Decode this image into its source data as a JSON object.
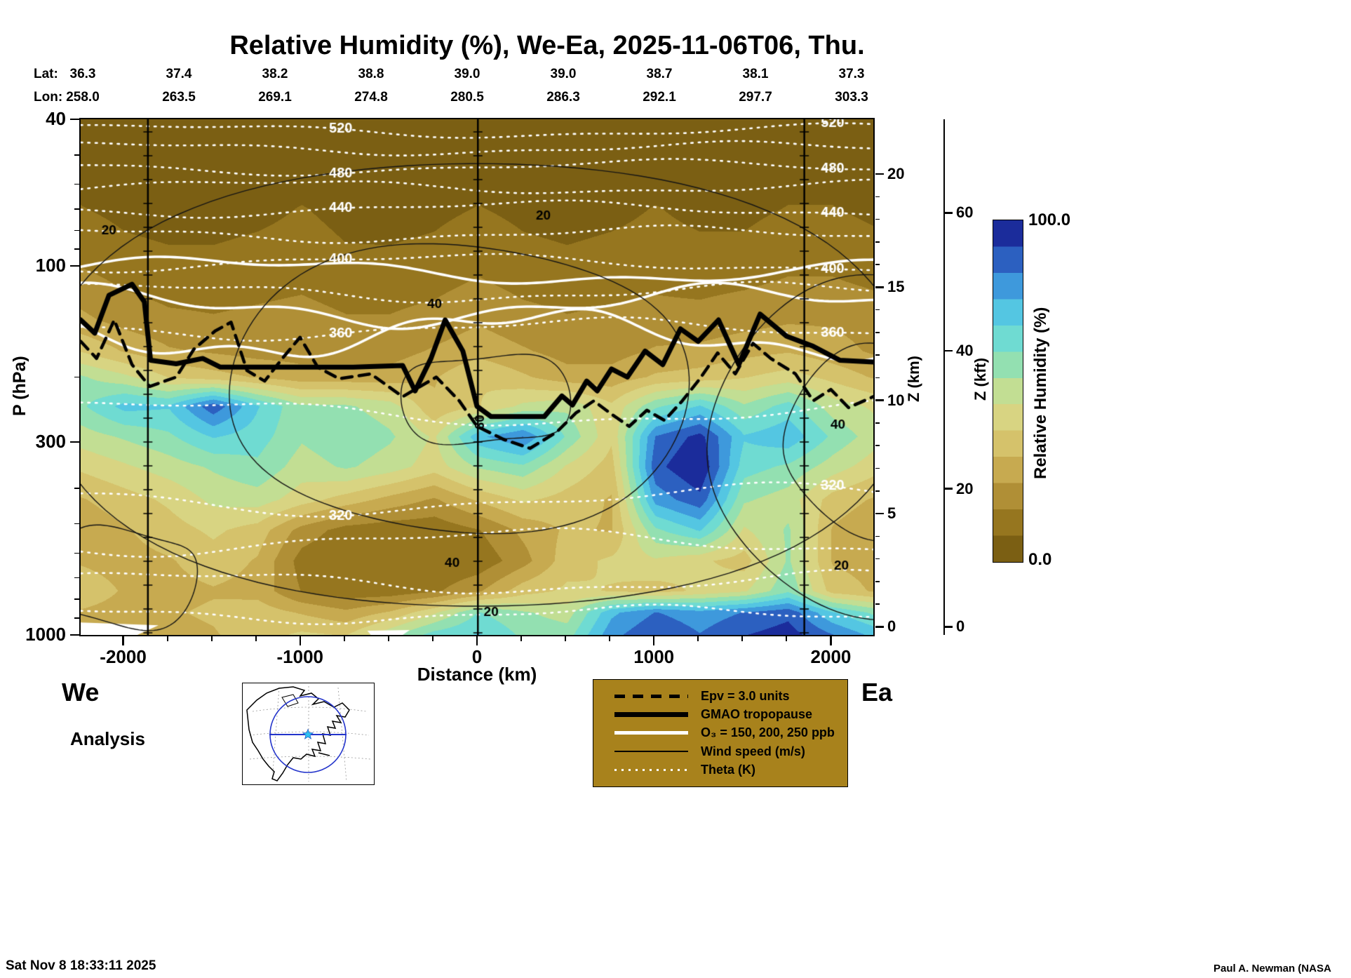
{
  "title": "Relative Humidity (%), We-Ea, 2025-11-06T06, Thu.",
  "header": {
    "lat_label": "Lat:",
    "lon_label": "Lon:",
    "lats": [
      "36.3",
      "37.4",
      "38.2",
      "38.8",
      "39.0",
      "39.0",
      "38.7",
      "38.1",
      "37.3"
    ],
    "lons": [
      "258.0",
      "263.5",
      "269.1",
      "274.8",
      "280.5",
      "286.3",
      "292.1",
      "297.7",
      "303.3"
    ]
  },
  "axes": {
    "pressure": {
      "label": "P (hPa)",
      "ticks": [
        40,
        100,
        300,
        1000
      ],
      "minor_ticks": [
        50,
        60,
        70,
        80,
        90,
        200,
        400,
        500,
        600,
        700,
        800,
        900
      ]
    },
    "distance": {
      "label": "Distance (km)",
      "ticks": [
        -2000,
        -1000,
        0,
        1000,
        2000
      ]
    },
    "z_km": {
      "label": "Z (km)",
      "ticks": [
        0,
        5,
        10,
        15,
        20
      ]
    },
    "z_kft": {
      "label": "Z (kft)",
      "ticks": [
        0,
        20,
        40,
        60
      ]
    }
  },
  "endpoints": {
    "west": "We",
    "east": "Ea"
  },
  "analysis_label": "Analysis",
  "timestamp": "Sat Nov  8 18:33:11 2025",
  "credit": "Paul A. Newman (NASA",
  "colors": {
    "legend_bg": "#a8821c",
    "section_line": "#000000"
  },
  "colorbar": {
    "title": "Relative Humidity (%)",
    "max_label": "100.0",
    "min_label": "0.0",
    "stops": [
      [
        0.0,
        "#6e5410"
      ],
      [
        0.08,
        "#8a6a16"
      ],
      [
        0.16,
        "#a5842b"
      ],
      [
        0.24,
        "#c0a046"
      ],
      [
        0.32,
        "#d2bb62"
      ],
      [
        0.4,
        "#dbd07e"
      ],
      [
        0.48,
        "#cfdd8c"
      ],
      [
        0.55,
        "#a2e0a4"
      ],
      [
        0.62,
        "#7ce0c6"
      ],
      [
        0.7,
        "#5ed5e2"
      ],
      [
        0.78,
        "#45afe3"
      ],
      [
        0.85,
        "#3478d2"
      ],
      [
        0.92,
        "#2348ae"
      ],
      [
        1.0,
        "#131389"
      ]
    ]
  },
  "legend": {
    "items": [
      {
        "style": "dashed-black",
        "label": "Epv = 3.0 units"
      },
      {
        "style": "thick-black",
        "label": "GMAO tropopause"
      },
      {
        "style": "white-solid",
        "label": "O₃ = 150, 200, 250 ppb"
      },
      {
        "style": "thin-black",
        "label": "Wind speed (m/s)"
      },
      {
        "style": "white-dotted",
        "label": "Theta (K)"
      }
    ]
  },
  "chart_data": {
    "type": "heatmap",
    "title": "Relative Humidity (%), We-Ea, 2025-11-06T06, Thu.",
    "xlabel": "Distance (km)",
    "ylabel": "P (hPa)",
    "x_range": [
      -2240,
      2240
    ],
    "p_range": [
      40,
      1000
    ],
    "x_km": [
      -2240,
      -1990,
      -1740,
      -1490,
      -1240,
      -990,
      -740,
      -490,
      -240,
      10,
      260,
      510,
      760,
      1010,
      1260,
      1510,
      1760,
      2010,
      2240
    ],
    "p_hpa": [
      40,
      55,
      70,
      90,
      110,
      140,
      170,
      200,
      240,
      290,
      350,
      430,
      520,
      630,
      760,
      870,
      1000
    ],
    "rh": [
      [
        3,
        3,
        2,
        2,
        3,
        3,
        2,
        2,
        3,
        3,
        2,
        2,
        3,
        3,
        2,
        2,
        3,
        3,
        3
      ],
      [
        5,
        4,
        4,
        3,
        4,
        5,
        4,
        3,
        4,
        5,
        4,
        3,
        4,
        5,
        4,
        4,
        5,
        5,
        4
      ],
      [
        8,
        6,
        5,
        5,
        6,
        8,
        6,
        5,
        6,
        8,
        6,
        5,
        6,
        8,
        6,
        6,
        8,
        8,
        6
      ],
      [
        12,
        9,
        8,
        8,
        9,
        10,
        8,
        8,
        9,
        12,
        9,
        8,
        9,
        10,
        9,
        9,
        12,
        12,
        10
      ],
      [
        18,
        14,
        12,
        12,
        13,
        14,
        12,
        12,
        13,
        16,
        13,
        12,
        13,
        14,
        13,
        14,
        16,
        16,
        14
      ],
      [
        25,
        20,
        17,
        16,
        17,
        18,
        16,
        16,
        18,
        22,
        18,
        16,
        17,
        18,
        18,
        20,
        22,
        22,
        20
      ],
      [
        38,
        30,
        24,
        22,
        20,
        20,
        20,
        20,
        24,
        28,
        24,
        20,
        20,
        24,
        25,
        28,
        30,
        26,
        22
      ],
      [
        55,
        48,
        38,
        34,
        30,
        26,
        26,
        26,
        30,
        38,
        32,
        26,
        26,
        32,
        34,
        38,
        42,
        36,
        30
      ],
      [
        60,
        72,
        70,
        90,
        70,
        55,
        55,
        50,
        32,
        38,
        48,
        52,
        40,
        60,
        70,
        55,
        65,
        50,
        45
      ],
      [
        50,
        55,
        60,
        70,
        65,
        55,
        60,
        55,
        45,
        75,
        85,
        60,
        40,
        85,
        95,
        70,
        75,
        60,
        50
      ],
      [
        40,
        45,
        50,
        55,
        60,
        50,
        55,
        50,
        42,
        55,
        60,
        45,
        35,
        90,
        100,
        65,
        60,
        50,
        42
      ],
      [
        30,
        35,
        40,
        48,
        50,
        42,
        35,
        28,
        22,
        32,
        40,
        35,
        30,
        80,
        90,
        55,
        50,
        35,
        30
      ],
      [
        25,
        30,
        35,
        40,
        35,
        20,
        12,
        10,
        10,
        15,
        25,
        32,
        30,
        60,
        70,
        45,
        55,
        30,
        25
      ],
      [
        30,
        28,
        30,
        35,
        30,
        12,
        8,
        8,
        8,
        10,
        20,
        35,
        40,
        45,
        40,
        35,
        55,
        30,
        28
      ],
      [
        35,
        30,
        28,
        30,
        28,
        15,
        10,
        10,
        14,
        22,
        35,
        40,
        38,
        35,
        40,
        45,
        60,
        35,
        30
      ],
      [
        30,
        28,
        30,
        32,
        35,
        30,
        25,
        32,
        45,
        62,
        55,
        50,
        75,
        85,
        80,
        85,
        90,
        70,
        60
      ],
      [
        20,
        25,
        28,
        30,
        35,
        40,
        38,
        52,
        65,
        70,
        60,
        58,
        82,
        92,
        85,
        92,
        96,
        85,
        75
      ]
    ],
    "theta_label_km": [
      -770,
      2010
    ],
    "theta_lines": [
      {
        "level": 520,
        "p": 43,
        "amp": 0.016,
        "wl": 620,
        "ph": 1.2,
        "labeled": true
      },
      {
        "level": 500,
        "p": 48,
        "amp": 0.015,
        "wl": 560,
        "ph": 2.0,
        "labeled": false
      },
      {
        "level": 480,
        "p": 54,
        "amp": 0.017,
        "wl": 640,
        "ph": 3.1,
        "labeled": true
      },
      {
        "level": 460,
        "p": 61,
        "amp": 0.016,
        "wl": 580,
        "ph": 0.4,
        "labeled": false
      },
      {
        "level": 440,
        "p": 70,
        "amp": 0.018,
        "wl": 600,
        "ph": 4.2,
        "labeled": true
      },
      {
        "level": 420,
        "p": 82,
        "amp": 0.018,
        "wl": 560,
        "ph": 2.8,
        "labeled": false
      },
      {
        "level": 400,
        "p": 98,
        "amp": 0.02,
        "wl": 640,
        "ph": 5.0,
        "labeled": true
      },
      {
        "level": 380,
        "p": 118,
        "amp": 0.022,
        "wl": 560,
        "ph": 1.7,
        "labeled": false
      },
      {
        "level": 360,
        "p": 148,
        "amp": 0.024,
        "wl": 600,
        "ph": 3.6,
        "labeled": true
      },
      {
        "level": 340,
        "p": 250,
        "amp": 0.03,
        "wl": 700,
        "ph": 0.9,
        "labeled": false
      },
      {
        "level": 320,
        "p": 430,
        "amp": 0.035,
        "wl": 760,
        "ph": 2.5,
        "labeled": true
      },
      {
        "level": 310,
        "p": 560,
        "amp": 0.03,
        "wl": 680,
        "ph": 4.4,
        "labeled": false
      },
      {
        "level": 300,
        "p": 720,
        "amp": 0.026,
        "wl": 620,
        "ph": 1.1,
        "labeled": false
      },
      {
        "level": 290,
        "p": 880,
        "amp": 0.02,
        "wl": 560,
        "ph": 3.0,
        "labeled": false
      }
    ],
    "o3_lines": [
      {
        "ppb": 150,
        "p": 103,
        "amp": 0.03,
        "wl": 680,
        "ph": 0.6
      },
      {
        "ppb": 200,
        "p": 128,
        "amp": 0.045,
        "wl": 600,
        "ph": 2.3
      },
      {
        "ppb": 250,
        "p": 153,
        "amp": 0.055,
        "wl": 520,
        "ph": 4.1
      }
    ],
    "wind_jets": [
      {
        "cx": 50,
        "cp": 230,
        "rx": 480,
        "ry": 0.13
      },
      {
        "cx": -100,
        "cp": 215,
        "rx": 1300,
        "ry": 0.4
      },
      {
        "cx": 0,
        "cp": 210,
        "rx": 2450,
        "ry": 0.62
      },
      {
        "cx": 2250,
        "cp": 300,
        "rx": 520,
        "ry": 0.25
      },
      {
        "cx": 2250,
        "cp": 310,
        "rx": 950,
        "ry": 0.45
      },
      {
        "cx": -2000,
        "cp": 700,
        "rx": 420,
        "ry": 0.14
      }
    ],
    "wind_labels": [
      {
        "text": "20",
        "km": -2080,
        "p": 80
      },
      {
        "text": "20",
        "km": 375,
        "p": 73
      },
      {
        "text": "40",
        "km": -240,
        "p": 127
      },
      {
        "text": "60",
        "km": 20,
        "p": 265,
        "rot": true
      },
      {
        "text": "40",
        "km": 2040,
        "p": 270
      },
      {
        "text": "20",
        "km": 2060,
        "p": 650
      },
      {
        "text": "40",
        "km": -140,
        "p": 640
      },
      {
        "text": "20",
        "km": 80,
        "p": 870
      }
    ],
    "tropopause": [
      [
        -2240,
        140
      ],
      [
        -2160,
        152
      ],
      [
        -2080,
        120
      ],
      [
        -1950,
        112
      ],
      [
        -1880,
        125
      ],
      [
        -1845,
        180
      ],
      [
        -1700,
        184
      ],
      [
        -1550,
        178
      ],
      [
        -1450,
        188
      ],
      [
        -700,
        188
      ],
      [
        -420,
        186
      ],
      [
        -350,
        218
      ],
      [
        -260,
        178
      ],
      [
        -180,
        140
      ],
      [
        -80,
        170
      ],
      [
        0,
        240
      ],
      [
        80,
        256
      ],
      [
        380,
        256
      ],
      [
        480,
        225
      ],
      [
        540,
        238
      ],
      [
        620,
        205
      ],
      [
        680,
        218
      ],
      [
        760,
        190
      ],
      [
        850,
        200
      ],
      [
        950,
        170
      ],
      [
        1050,
        185
      ],
      [
        1150,
        148
      ],
      [
        1250,
        160
      ],
      [
        1365,
        140
      ],
      [
        1480,
        185
      ],
      [
        1600,
        135
      ],
      [
        1750,
        155
      ],
      [
        1900,
        165
      ],
      [
        2050,
        180
      ],
      [
        2240,
        182
      ]
    ],
    "epv": [
      [
        -2240,
        160
      ],
      [
        -2150,
        178
      ],
      [
        -2050,
        140
      ],
      [
        -1950,
        185
      ],
      [
        -1850,
        212
      ],
      [
        -1700,
        200
      ],
      [
        -1600,
        168
      ],
      [
        -1480,
        150
      ],
      [
        -1390,
        142
      ],
      [
        -1300,
        192
      ],
      [
        -1200,
        205
      ],
      [
        -1100,
        178
      ],
      [
        -1000,
        156
      ],
      [
        -900,
        188
      ],
      [
        -780,
        202
      ],
      [
        -600,
        196
      ],
      [
        -420,
        226
      ],
      [
        -230,
        200
      ],
      [
        -100,
        232
      ],
      [
        0,
        272
      ],
      [
        150,
        295
      ],
      [
        300,
        312
      ],
      [
        450,
        282
      ],
      [
        560,
        250
      ],
      [
        660,
        232
      ],
      [
        760,
        252
      ],
      [
        860,
        272
      ],
      [
        960,
        246
      ],
      [
        1060,
        262
      ],
      [
        1160,
        232
      ],
      [
        1260,
        202
      ],
      [
        1360,
        172
      ],
      [
        1460,
        196
      ],
      [
        1560,
        162
      ],
      [
        1660,
        178
      ],
      [
        1800,
        196
      ],
      [
        1900,
        232
      ],
      [
        2000,
        216
      ],
      [
        2100,
        242
      ],
      [
        2240,
        226
      ]
    ],
    "section_lines_km": [
      -1860,
      5,
      1850
    ],
    "missing_regions": [
      [
        [
          -2240,
          925
        ],
        [
          -1800,
          942
        ],
        [
          -1920,
          1000
        ],
        [
          -2240,
          1000
        ]
      ],
      [
        [
          -620,
          974
        ],
        [
          -380,
          970
        ],
        [
          -420,
          1000
        ],
        [
          -600,
          1000
        ]
      ]
    ]
  }
}
